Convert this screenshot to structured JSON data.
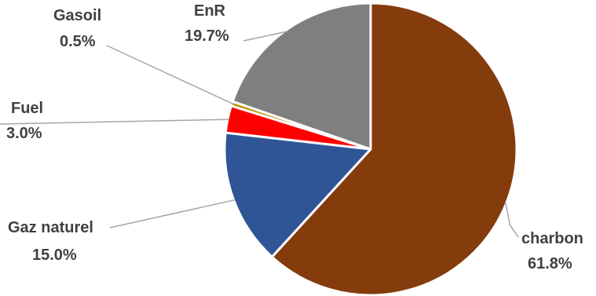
{
  "chart_data": {
    "type": "pie",
    "title": "",
    "start_angle_deg": 0,
    "direction": "clockwise",
    "slices": [
      {
        "name": "charbon",
        "value": 61.8,
        "label": "61.8%",
        "color": "#843C0C"
      },
      {
        "name": "Gaz naturel",
        "value": 15.0,
        "label": "15.0%",
        "color": "#2F5597"
      },
      {
        "name": "Fuel",
        "value": 3.0,
        "label": "3.0%",
        "color": "#FF0000"
      },
      {
        "name": "Gasoil",
        "value": 0.5,
        "label": "0.5%",
        "color": "#C09000"
      },
      {
        "name": "EnR",
        "value": 19.7,
        "label": "19.7%",
        "color": "#7F7F7F"
      }
    ],
    "legend": "none"
  }
}
